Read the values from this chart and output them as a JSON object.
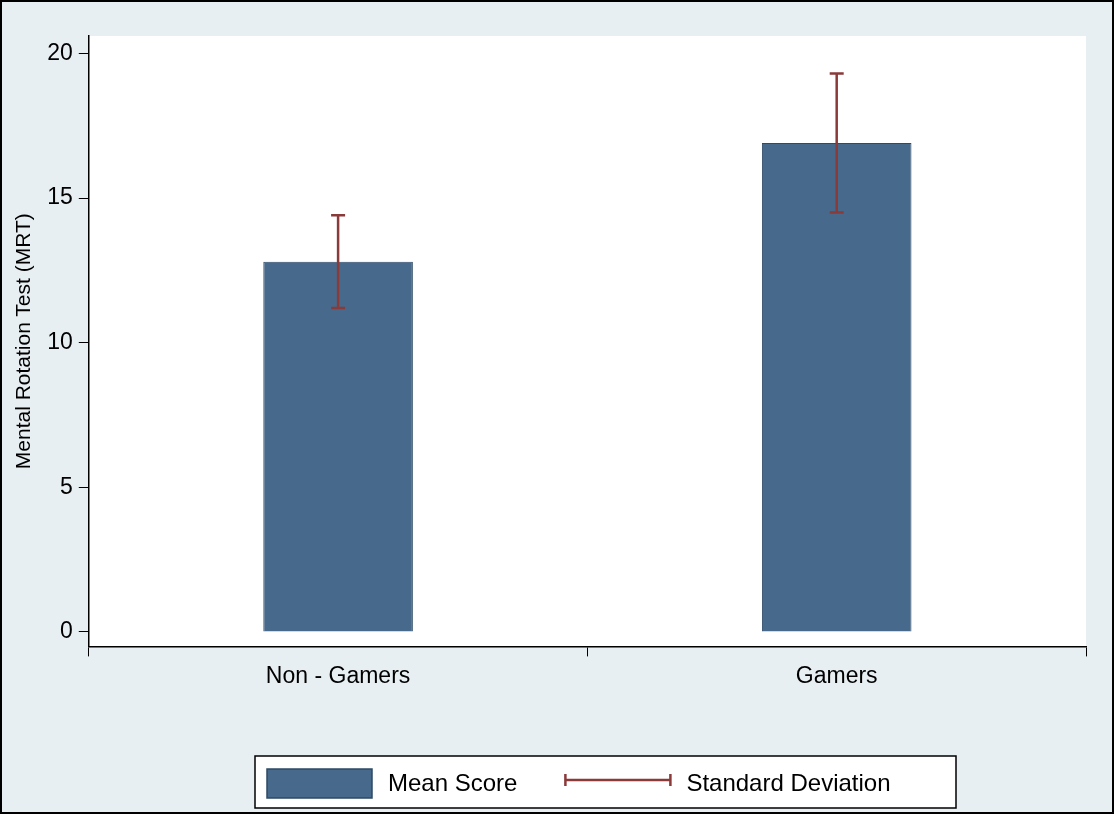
{
  "chart_data": {
    "type": "bar",
    "ylabel": "Mental Rotation Test (MRT)",
    "categories": [
      "Non - Gamers",
      "Gamers"
    ],
    "series": [
      {
        "name": "Mean Score",
        "color": "#476a8c",
        "values": [
          12.8,
          16.9
        ],
        "errors": [
          1.6,
          2.4
        ]
      }
    ],
    "ylim": [
      -0.5,
      20.6
    ],
    "yticks": [
      0,
      5,
      10,
      15,
      20
    ],
    "grid": false,
    "legend": "bottom",
    "annotations": [
      "Standard Deviation"
    ]
  }
}
